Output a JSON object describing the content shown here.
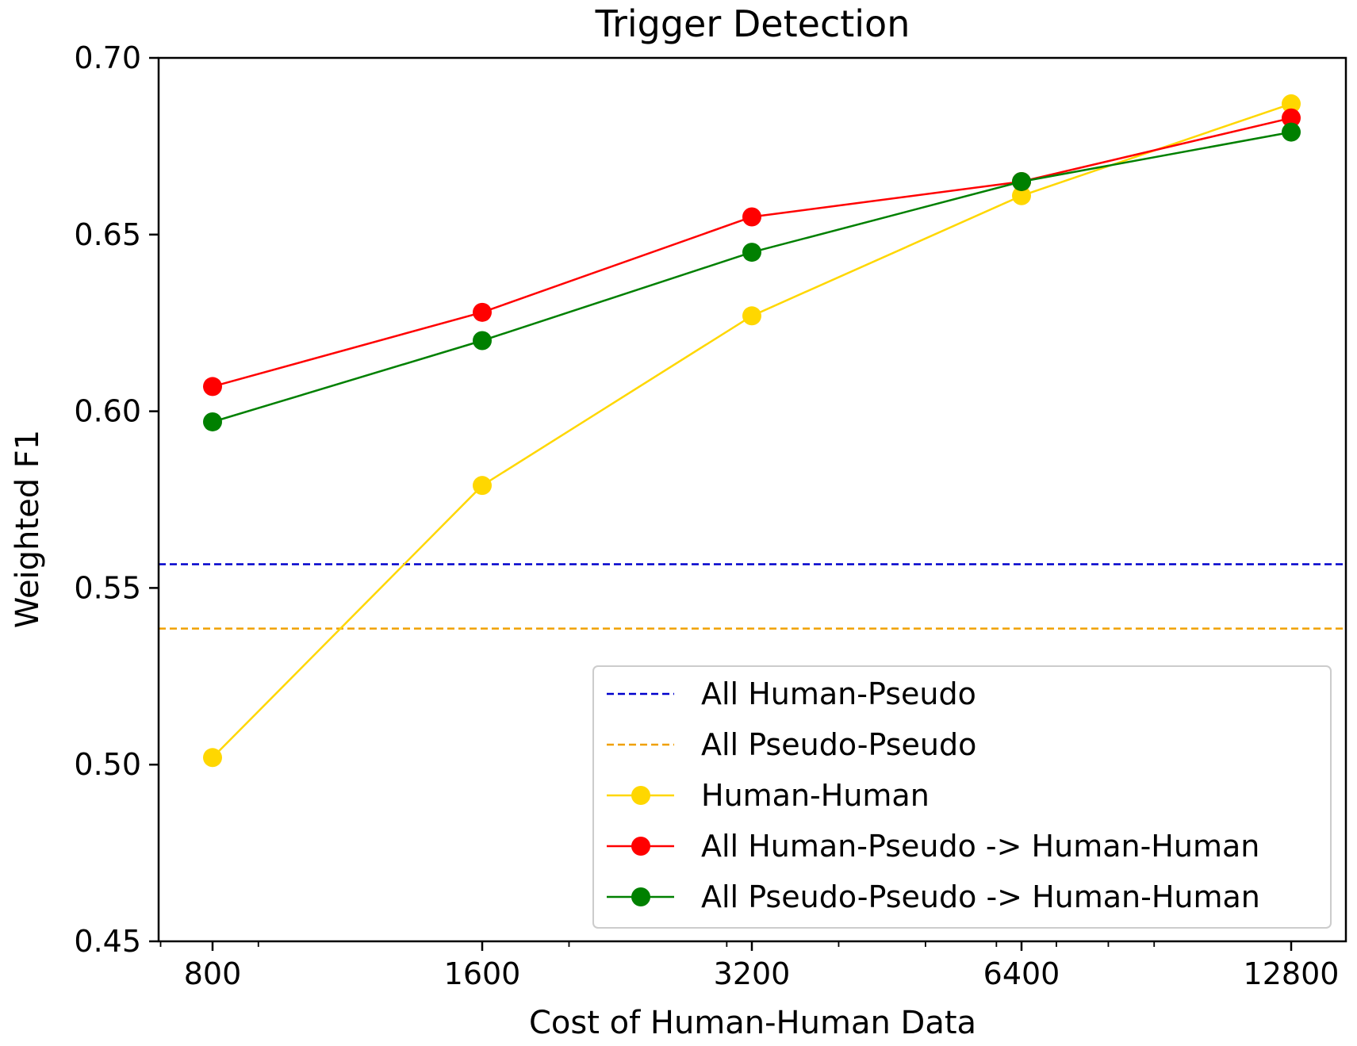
{
  "chart_data": {
    "type": "line",
    "title": "Trigger Detection",
    "xlabel": "Cost of Human-Human Data",
    "ylabel": "Weighted F1",
    "x_scale": "log2",
    "x": [
      800,
      1600,
      3200,
      6400,
      12800
    ],
    "x_tick_labels": [
      "800",
      "1600",
      "3200",
      "6400",
      "12800"
    ],
    "ylim": [
      0.45,
      0.7
    ],
    "y_ticks": [
      0.45,
      0.5,
      0.55,
      0.6,
      0.65,
      0.7
    ],
    "y_tick_labels": [
      "0.45",
      "0.50",
      "0.55",
      "0.60",
      "0.65",
      "0.70"
    ],
    "grid": false,
    "legend_position": "lower-right",
    "reference_lines": [
      {
        "name": "All Human-Pseudo",
        "y": 0.5567,
        "color": "#0000cc",
        "style": "dashed"
      },
      {
        "name": "All Pseudo-Pseudo",
        "y": 0.5385,
        "color": "#f0a000",
        "style": "dashed"
      }
    ],
    "series": [
      {
        "name": "Human-Human",
        "color": "#ffd700",
        "values": [
          0.502,
          0.579,
          0.627,
          0.661,
          0.687
        ]
      },
      {
        "name": "All Human-Pseudo -> Human-Human",
        "color": "#ff0000",
        "values": [
          0.607,
          0.628,
          0.655,
          0.665,
          0.683
        ]
      },
      {
        "name": "All Pseudo-Pseudo -> Human-Human",
        "color": "#008000",
        "values": [
          0.597,
          0.62,
          0.645,
          0.665,
          0.679
        ]
      }
    ]
  }
}
